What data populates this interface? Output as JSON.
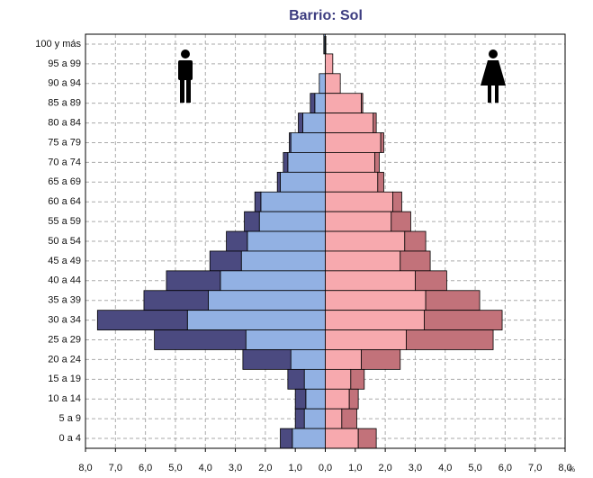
{
  "chart_data": {
    "type": "population-pyramid",
    "title": "Barrio: Sol",
    "categories": [
      "100 y más",
      "95 a 99",
      "90 a 94",
      "85 a 89",
      "80 a 84",
      "75 a 79",
      "70 a 74",
      "65 a 69",
      "60 a 64",
      "55 a 59",
      "50 a 54",
      "45 a 49",
      "40 a 44",
      "35 a 39",
      "30 a 34",
      "25 a 29",
      "20 a 24",
      "15 a 19",
      "10 a 14",
      "5 a 9",
      "0 a 4"
    ],
    "series": [
      {
        "side": "left",
        "color": "#92b1e3",
        "values": [
          0.05,
          0,
          0.2,
          0.35,
          0.75,
          1.15,
          1.25,
          1.5,
          2.15,
          2.2,
          2.6,
          2.8,
          3.5,
          3.9,
          4.6,
          2.65,
          1.15,
          0.7,
          0.65,
          0.7,
          1.1
        ]
      },
      {
        "side": "left",
        "color": "#4b4a80",
        "values": [
          0,
          0,
          0,
          0.15,
          0.15,
          0.05,
          0.15,
          0.1,
          0.2,
          0.5,
          0.7,
          1.05,
          1.8,
          2.15,
          3.0,
          3.05,
          1.6,
          0.55,
          0.35,
          0.3,
          0.4
        ]
      },
      {
        "side": "right",
        "color": "#f7a9ae",
        "values": [
          0,
          0.25,
          0.5,
          1.2,
          1.6,
          1.85,
          1.65,
          1.75,
          2.25,
          2.2,
          2.65,
          2.5,
          3.0,
          3.35,
          3.3,
          2.7,
          1.2,
          0.85,
          0.8,
          0.55,
          1.1
        ]
      },
      {
        "side": "right",
        "color": "#c2727a",
        "values": [
          0,
          0,
          0,
          0.05,
          0.1,
          0.1,
          0.15,
          0.2,
          0.3,
          0.65,
          0.7,
          1.0,
          1.05,
          1.8,
          2.6,
          2.9,
          1.3,
          0.45,
          0.3,
          0.5,
          0.6
        ]
      }
    ],
    "xlim": [
      -8,
      8
    ],
    "xticks": [
      {
        "value": -8,
        "label": "8,0"
      },
      {
        "value": -7,
        "label": "7,0"
      },
      {
        "value": -6,
        "label": "6,0"
      },
      {
        "value": -5,
        "label": "5,0"
      },
      {
        "value": -4,
        "label": "4,0"
      },
      {
        "value": -3,
        "label": "3,0"
      },
      {
        "value": -2,
        "label": "2,0"
      },
      {
        "value": -1,
        "label": "1,0"
      },
      {
        "value": 0,
        "label": "0,0"
      },
      {
        "value": 1,
        "label": "1,0"
      },
      {
        "value": 2,
        "label": "2,0"
      },
      {
        "value": 3,
        "label": "3,0"
      },
      {
        "value": 4,
        "label": "4,0"
      },
      {
        "value": 5,
        "label": "5,0"
      },
      {
        "value": 6,
        "label": "6,0"
      },
      {
        "value": 7,
        "label": "7,0"
      },
      {
        "value": 8,
        "label": "8,0"
      }
    ],
    "x_unit": "%",
    "grid": true
  }
}
